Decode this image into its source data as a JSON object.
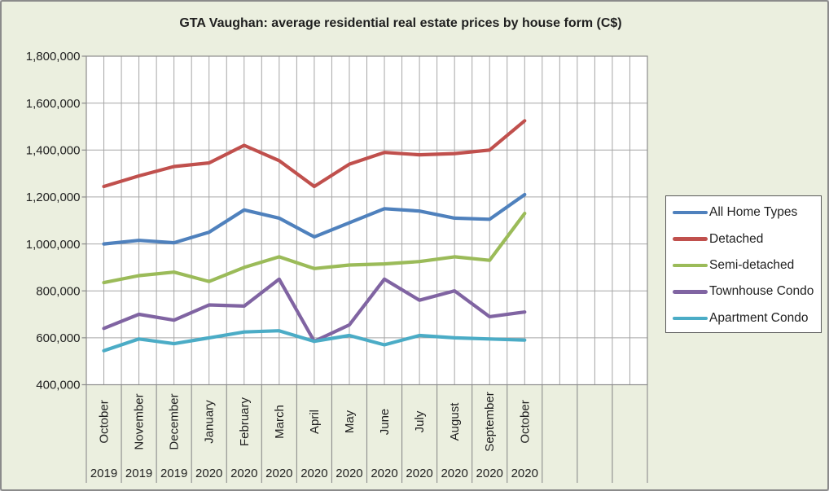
{
  "title": "GTA Vaughan: average residential real estate prices by house form (C$)",
  "chart_data": {
    "type": "line",
    "title": "GTA Vaughan: average residential real estate prices by house form (C$)",
    "x_months": [
      "October",
      "November",
      "December",
      "January",
      "February",
      "March",
      "April",
      "May",
      "June",
      "July",
      "August",
      "September",
      "October"
    ],
    "x_years": [
      "2019",
      "2019",
      "2019",
      "2020",
      "2020",
      "2020",
      "2020",
      "2020",
      "2020",
      "2020",
      "2020",
      "2020",
      "2020"
    ],
    "series": [
      {
        "name": "All Home Types",
        "color": "#4F81BD",
        "values": [
          1000000,
          1015000,
          1005000,
          1050000,
          1145000,
          1110000,
          1030000,
          1090000,
          1150000,
          1140000,
          1110000,
          1105000,
          1210000
        ]
      },
      {
        "name": "Detached",
        "color": "#C0504D",
        "values": [
          1245000,
          1290000,
          1330000,
          1345000,
          1420000,
          1355000,
          1245000,
          1340000,
          1390000,
          1380000,
          1385000,
          1400000,
          1525000
        ]
      },
      {
        "name": "Semi-detached",
        "color": "#9BBB59",
        "values": [
          835000,
          865000,
          880000,
          840000,
          900000,
          945000,
          895000,
          910000,
          915000,
          925000,
          945000,
          930000,
          1130000
        ]
      },
      {
        "name": "Townhouse Condo",
        "color": "#8064A2",
        "values": [
          640000,
          700000,
          675000,
          740000,
          735000,
          850000,
          585000,
          655000,
          850000,
          760000,
          800000,
          690000,
          710000
        ]
      },
      {
        "name": "Apartment Condo",
        "color": "#4BACC6",
        "values": [
          545000,
          595000,
          575000,
          600000,
          625000,
          630000,
          585000,
          610000,
          570000,
          610000,
          600000,
          595000,
          590000
        ]
      }
    ],
    "ylim": [
      400000,
      1800000
    ],
    "ytick_step": 200000,
    "total_category_slots": 16,
    "grid": true,
    "legend_position": "right"
  },
  "colors": {
    "canvas_bg": "#EBEFDF",
    "canvas_border": "#8B8B8B",
    "plot_bg": "#FFFFFF",
    "gridline": "#A6A6A6",
    "divider": "#8C8C8C",
    "text": "#1F1F1F",
    "legend_border": "#595959"
  }
}
